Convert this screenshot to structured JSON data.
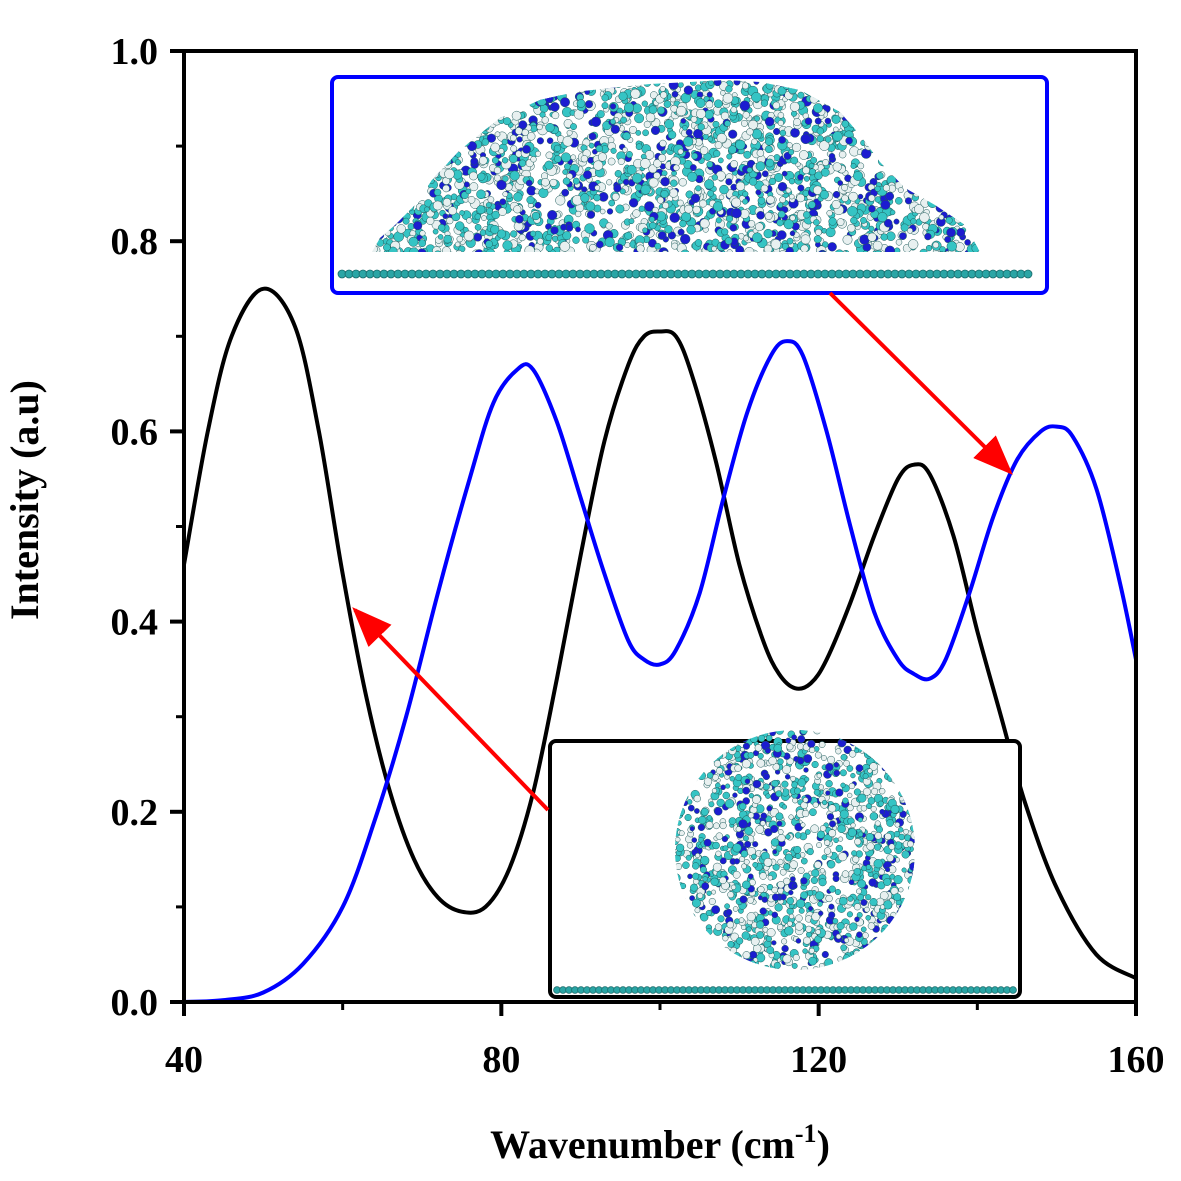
{
  "chart_data": {
    "type": "line",
    "xlabel": "Wavenumber (cm",
    "xlabel_sup": "-1",
    "xlabel_tail": ")",
    "ylabel": "Intensity (a.u)",
    "xlim": [
      40,
      160
    ],
    "ylim": [
      0,
      1.0
    ],
    "xticks": [
      "40",
      "80",
      "120",
      "160"
    ],
    "yticks": [
      "0.0",
      "0.2",
      "0.4",
      "0.6",
      "0.8",
      "1.0"
    ],
    "grid": false,
    "series": [
      {
        "color": "#000000",
        "points": [
          [
            40,
            0.46
          ],
          [
            43,
            0.6
          ],
          [
            46,
            0.7
          ],
          [
            50,
            0.75
          ],
          [
            54,
            0.71
          ],
          [
            57,
            0.6
          ],
          [
            60,
            0.45
          ],
          [
            63,
            0.32
          ],
          [
            66,
            0.22
          ],
          [
            69,
            0.15
          ],
          [
            72,
            0.11
          ],
          [
            75,
            0.095
          ],
          [
            78,
            0.1
          ],
          [
            81,
            0.14
          ],
          [
            84,
            0.22
          ],
          [
            87,
            0.34
          ],
          [
            90,
            0.47
          ],
          [
            93,
            0.59
          ],
          [
            96,
            0.67
          ],
          [
            98,
            0.7
          ],
          [
            100,
            0.705
          ],
          [
            102,
            0.7
          ],
          [
            104,
            0.66
          ],
          [
            107,
            0.57
          ],
          [
            110,
            0.46
          ],
          [
            113,
            0.38
          ],
          [
            115,
            0.345
          ],
          [
            117,
            0.33
          ],
          [
            119,
            0.335
          ],
          [
            121,
            0.36
          ],
          [
            124,
            0.42
          ],
          [
            127,
            0.49
          ],
          [
            130,
            0.55
          ],
          [
            132,
            0.565
          ],
          [
            134,
            0.555
          ],
          [
            137,
            0.49
          ],
          [
            140,
            0.39
          ],
          [
            143,
            0.3
          ],
          [
            146,
            0.21
          ],
          [
            150,
            0.12
          ],
          [
            155,
            0.05
          ],
          [
            160,
            0.025
          ]
        ]
      },
      {
        "color": "#0000ff",
        "points": [
          [
            40,
            0.0
          ],
          [
            45,
            0.002
          ],
          [
            50,
            0.01
          ],
          [
            55,
            0.04
          ],
          [
            60,
            0.1
          ],
          [
            64,
            0.19
          ],
          [
            68,
            0.3
          ],
          [
            72,
            0.43
          ],
          [
            76,
            0.55
          ],
          [
            79,
            0.63
          ],
          [
            82,
            0.665
          ],
          [
            84,
            0.665
          ],
          [
            87,
            0.61
          ],
          [
            90,
            0.53
          ],
          [
            93,
            0.45
          ],
          [
            96,
            0.38
          ],
          [
            98,
            0.36
          ],
          [
            100,
            0.355
          ],
          [
            102,
            0.37
          ],
          [
            105,
            0.43
          ],
          [
            108,
            0.53
          ],
          [
            111,
            0.62
          ],
          [
            114,
            0.68
          ],
          [
            116,
            0.695
          ],
          [
            118,
            0.68
          ],
          [
            121,
            0.6
          ],
          [
            124,
            0.5
          ],
          [
            127,
            0.41
          ],
          [
            130,
            0.36
          ],
          [
            132,
            0.345
          ],
          [
            134,
            0.34
          ],
          [
            136,
            0.36
          ],
          [
            139,
            0.43
          ],
          [
            142,
            0.51
          ],
          [
            145,
            0.57
          ],
          [
            148,
            0.6
          ],
          [
            150,
            0.605
          ],
          [
            152,
            0.595
          ],
          [
            155,
            0.54
          ],
          [
            158,
            0.44
          ],
          [
            160,
            0.36
          ]
        ]
      }
    ]
  },
  "insets": [
    {
      "border_color": "#0000ff",
      "description": "hemispherical droplet on surface"
    },
    {
      "border_color": "#000000",
      "description": "spherical droplet above surface"
    }
  ],
  "colors": {
    "arrow": "#ff0000",
    "substrate": "#2aa5a5",
    "atom_carbon": "#35c4c4",
    "atom_nitrogen": "#1c1cd0",
    "atom_hydrogen": "#e8f0f0"
  }
}
